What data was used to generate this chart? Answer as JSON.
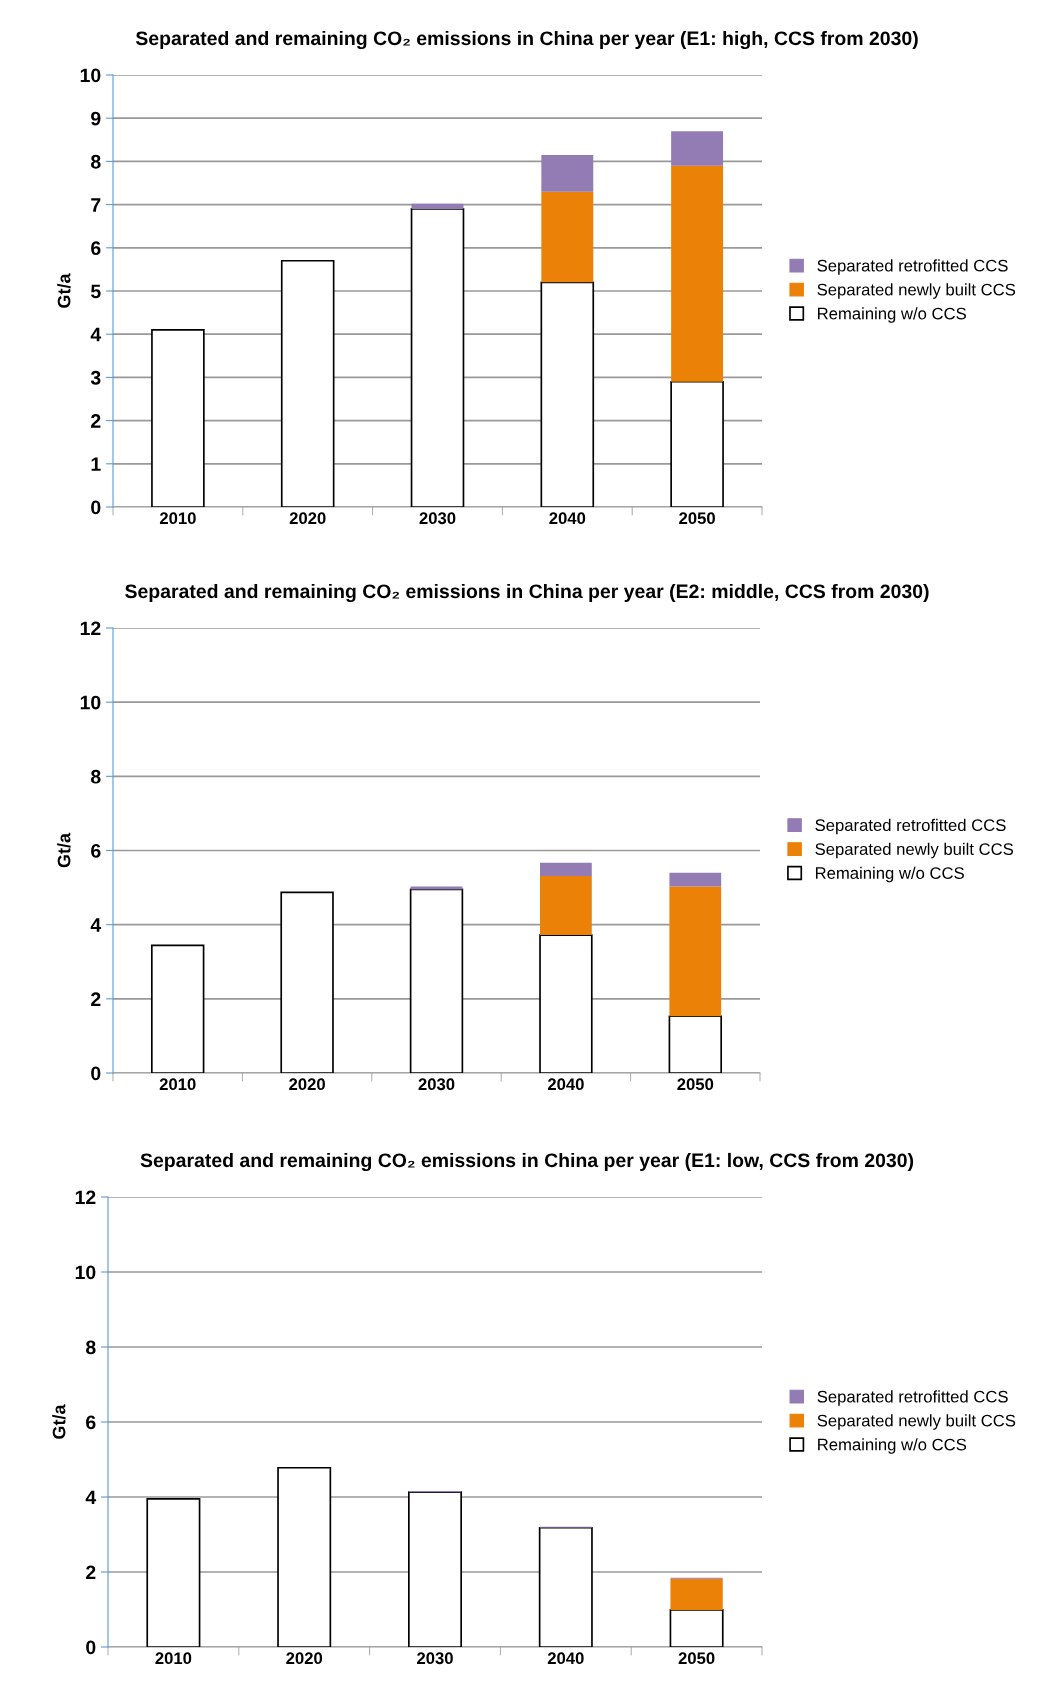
{
  "chart_data": [
    {
      "type": "bar",
      "title": "Separated and remaining CO₂ emissions in China per year (E1: high, CCS from 2030)",
      "ylabel": "Gt/a",
      "categories": [
        "2010",
        "2020",
        "2030",
        "2040",
        "2050"
      ],
      "stacked": true,
      "ylim": [
        0,
        10
      ],
      "yticks": [
        0,
        1,
        2,
        3,
        4,
        5,
        6,
        7,
        8,
        9,
        10
      ],
      "grid": "y",
      "legend": "right",
      "series": [
        {
          "name": "Remaining w/o CCS",
          "color": "#ffffff",
          "values": [
            4.1,
            5.7,
            6.9,
            5.2,
            2.9
          ]
        },
        {
          "name": "Separated newly built CCS",
          "color": "#eb8106",
          "values": [
            0,
            0,
            0,
            2.1,
            5.0
          ]
        },
        {
          "name": "Separated retrofitted CCS",
          "color": "#937bb3",
          "values": [
            0,
            0,
            0.12,
            0.85,
            0.8
          ]
        }
      ]
    },
    {
      "type": "bar",
      "title": "Separated and remaining CO₂ emissions in China per year (E2: middle, CCS from 2030)",
      "ylabel": "Gt/a",
      "categories": [
        "2010",
        "2020",
        "2030",
        "2040",
        "2050"
      ],
      "stacked": true,
      "ylim": [
        0,
        12
      ],
      "yticks": [
        0,
        2,
        4,
        6,
        8,
        10,
        12
      ],
      "grid": "y",
      "legend": "right",
      "series": [
        {
          "name": "Remaining w/o CCS",
          "color": "#ffffff",
          "values": [
            3.44,
            4.87,
            4.95,
            3.72,
            1.53
          ]
        },
        {
          "name": "Separated newly built CCS",
          "color": "#eb8106",
          "values": [
            0,
            0,
            0,
            1.59,
            3.5
          ]
        },
        {
          "name": "Separated retrofitted CCS",
          "color": "#937bb3",
          "values": [
            0,
            0,
            0.08,
            0.36,
            0.37
          ]
        }
      ]
    },
    {
      "type": "bar",
      "title": "Separated and remaining CO₂ emissions in China per year (E1: low, CCS from 2030)",
      "ylabel": "Gt/a",
      "categories": [
        "2010",
        "2020",
        "2030",
        "2040",
        "2050"
      ],
      "stacked": true,
      "ylim": [
        0,
        12
      ],
      "yticks": [
        0,
        2,
        4,
        6,
        8,
        10,
        12
      ],
      "grid": "y",
      "legend": "right",
      "series": [
        {
          "name": "Remaining w/o CCS",
          "color": "#ffffff",
          "values": [
            3.95,
            4.78,
            4.13,
            3.18,
            0.99
          ]
        },
        {
          "name": "Separated newly built CCS",
          "color": "#eb8106",
          "values": [
            0,
            0,
            0,
            0,
            0.83
          ]
        },
        {
          "name": "Separated retrofitted CCS",
          "color": "#937bb3",
          "values": [
            0,
            0,
            0.03,
            0.03,
            0.03
          ]
        }
      ]
    }
  ]
}
